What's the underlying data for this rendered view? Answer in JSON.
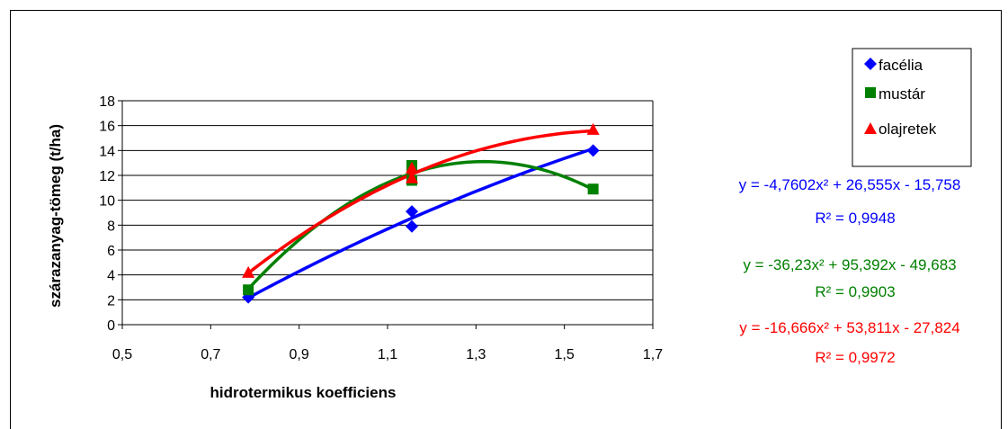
{
  "chart_data": {
    "type": "scatter",
    "xlabel": "hidrotermikus koefficiens",
    "ylabel": "szárazanyag-tömeg (t/ha)",
    "xlim": [
      0.5,
      1.7
    ],
    "ylim": [
      0,
      18
    ],
    "xticks": [
      "0,5",
      "0,7",
      "0,9",
      "1,1",
      "1,3",
      "1,5",
      "1,7"
    ],
    "yticks": [
      "0",
      "2",
      "4",
      "6",
      "8",
      "10",
      "12",
      "14",
      "16",
      "18"
    ],
    "grid": "horizontal",
    "legend_position": "top-right",
    "series": [
      {
        "name": "facélia",
        "marker": "diamond",
        "color": "#0000FF",
        "points": [
          [
            0.785,
            2.2
          ],
          [
            1.155,
            9.1
          ],
          [
            1.155,
            7.9
          ],
          [
            1.565,
            14.0
          ]
        ],
        "trendline": {
          "type": "polynomial",
          "order": 2,
          "coefficients": [
            -4.7602,
            26.555,
            -15.758
          ],
          "x_range": [
            0.785,
            1.565
          ]
        },
        "equation": "y = -4,7602x² + 26,555x - 15,758",
        "r2_label": "R² = 0,9948"
      },
      {
        "name": "mustár",
        "marker": "square",
        "color": "#008000",
        "points": [
          [
            0.785,
            2.8
          ],
          [
            1.155,
            12.8
          ],
          [
            1.155,
            11.6
          ],
          [
            1.565,
            10.9
          ]
        ],
        "trendline": {
          "type": "polynomial",
          "order": 2,
          "coefficients": [
            -36.23,
            95.392,
            -49.683
          ],
          "x_range": [
            0.785,
            1.565
          ]
        },
        "equation": "y = -36,23x² + 95,392x - 49,683",
        "r2_label": "R² = 0,9903"
      },
      {
        "name": "olajretek",
        "marker": "triangle",
        "color": "#FF0000",
        "points": [
          [
            0.785,
            4.2
          ],
          [
            1.155,
            12.6
          ],
          [
            1.155,
            11.8
          ],
          [
            1.565,
            15.7
          ]
        ],
        "trendline": {
          "type": "polynomial",
          "order": 2,
          "coefficients": [
            -16.666,
            53.811,
            -27.824
          ],
          "x_range": [
            0.785,
            1.565
          ]
        },
        "equation": "y = -16,666x² + 53,811x - 27,824",
        "r2_label": "R² = 0,9972"
      }
    ]
  }
}
